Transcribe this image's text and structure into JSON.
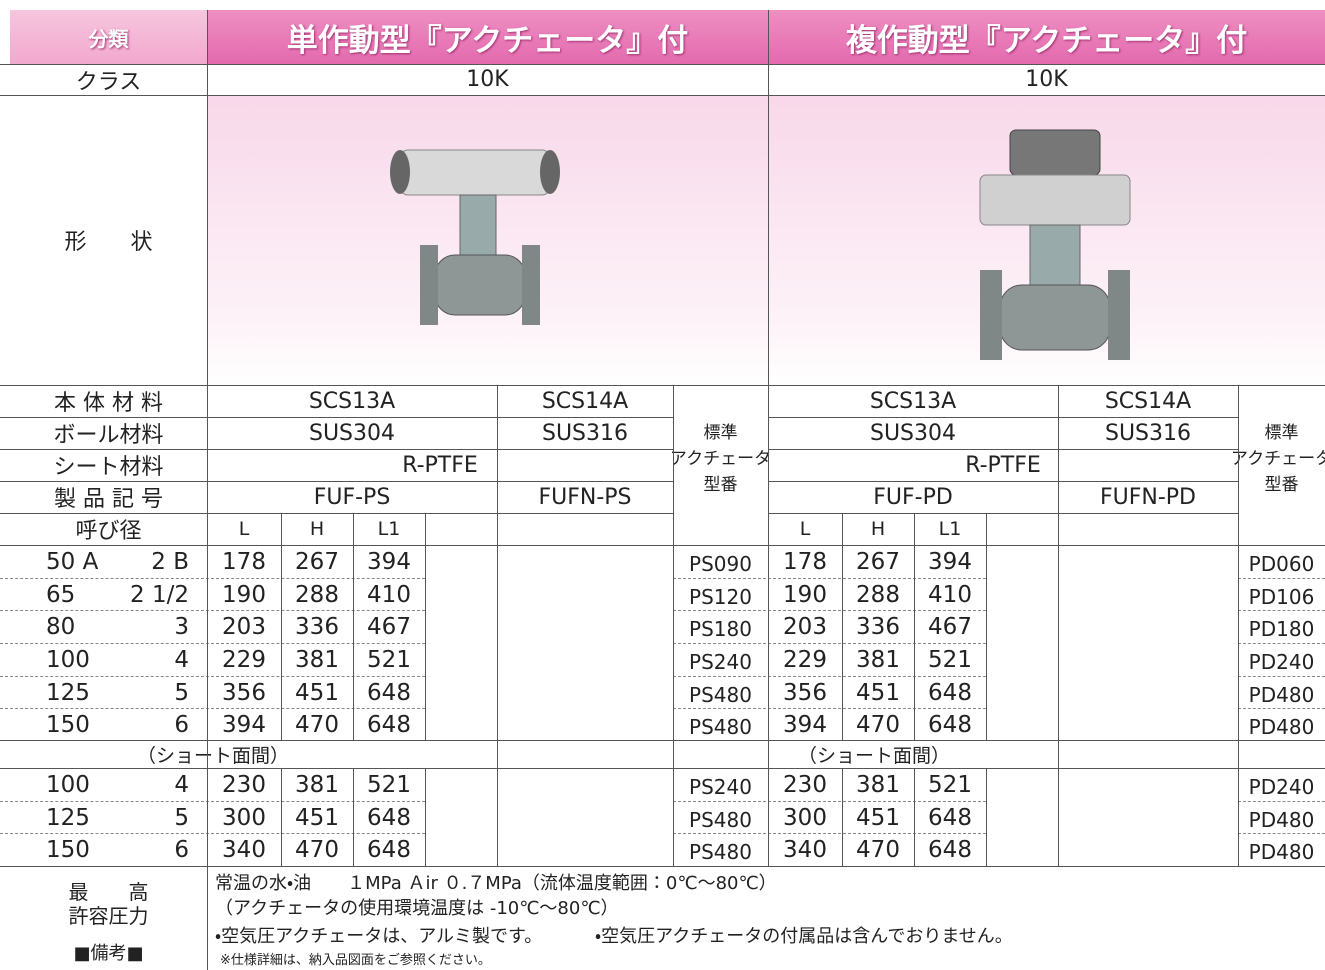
{
  "header": {
    "category": "分類",
    "single": "単作動型『アクチェータ』付",
    "double": "複作動型『アクチェータ』付"
  },
  "class_row": {
    "label": "クラス",
    "single": "10K",
    "double": "10K"
  },
  "shape_row": {
    "label": "形　　状"
  },
  "spec_labels": {
    "body": "本 体 材 料",
    "ball": "ボール材料",
    "seat": "シート材料",
    "code": "製 品 記 号"
  },
  "single": {
    "body": [
      "SCS13A",
      "SCS14A"
    ],
    "ball": [
      "SUS304",
      "SUS316"
    ],
    "seat": "R-PTFE",
    "code": [
      "FUF-PS",
      "FUFN-PS"
    ],
    "actuator_header": [
      "標準",
      "アクチェータ",
      "型番"
    ]
  },
  "double": {
    "body": [
      "SCS13A",
      "SCS14A"
    ],
    "ball": [
      "SUS304",
      "SUS316"
    ],
    "seat": "R-PTFE",
    "code": [
      "FUF-PD",
      "FUFN-PD"
    ],
    "actuator_header": [
      "標準",
      "アクチェータ",
      "型番"
    ]
  },
  "size_header": {
    "label": "呼び径",
    "single_cols": [
      "L",
      "H",
      "L1"
    ],
    "double_cols": [
      "L",
      "H",
      "L1"
    ]
  },
  "rows": [
    {
      "a": "50 A",
      "b": "2 B",
      "single": [
        178,
        267,
        394
      ],
      "single_act": "PS090",
      "double": [
        178,
        267,
        394
      ],
      "double_act": "PD060"
    },
    {
      "a": "65",
      "b": "2 1/2",
      "single": [
        190,
        288,
        410
      ],
      "single_act": "PS120",
      "double": [
        190,
        288,
        410
      ],
      "double_act": "PD106"
    },
    {
      "a": "80",
      "b": "3",
      "single": [
        203,
        336,
        467
      ],
      "single_act": "PS180",
      "double": [
        203,
        336,
        467
      ],
      "double_act": "PD180"
    },
    {
      "a": "100",
      "b": "4",
      "single": [
        229,
        381,
        521
      ],
      "single_act": "PS240",
      "double": [
        229,
        381,
        521
      ],
      "double_act": "PD240"
    },
    {
      "a": "125",
      "b": "5",
      "single": [
        356,
        451,
        648
      ],
      "single_act": "PS480",
      "double": [
        356,
        451,
        648
      ],
      "double_act": "PD480"
    },
    {
      "a": "150",
      "b": "6",
      "single": [
        394,
        470,
        648
      ],
      "single_act": "PS480",
      "double": [
        394,
        470,
        648
      ],
      "double_act": "PD480"
    }
  ],
  "short": {
    "single_label": "（ショート面間）",
    "double_label": "（ショート面間）",
    "rows": [
      {
        "a": "100",
        "b": "4",
        "single": [
          230,
          381,
          521
        ],
        "single_act": "PS240",
        "double": [
          230,
          381,
          521
        ],
        "double_act": "PD240"
      },
      {
        "a": "125",
        "b": "5",
        "single": [
          300,
          451,
          648
        ],
        "single_act": "PS480",
        "double": [
          300,
          451,
          648
        ],
        "double_act": "PD480"
      },
      {
        "a": "150",
        "b": "6",
        "single": [
          340,
          470,
          648
        ],
        "single_act": "PS480",
        "double": [
          340,
          470,
          648
        ],
        "double_act": "PD480"
      }
    ]
  },
  "notes": {
    "pressure_label": [
      "最　　高",
      "許容圧力"
    ],
    "remarks_label": "■備考■",
    "pressure": "常温の水・油　　１MPa Ａir ０.７MPa（流体温度範囲：0℃～80℃）",
    "env_temp": "（アクチェータの使用環境温度は -10℃～80℃）",
    "remarks": [
      "・空気圧アクチェータは、アルミ製です。",
      "・空気圧アクチェータの付属品は含んでおりません。"
    ],
    "footnote": "※仕様詳細は、納入品図面をご参照ください。"
  }
}
